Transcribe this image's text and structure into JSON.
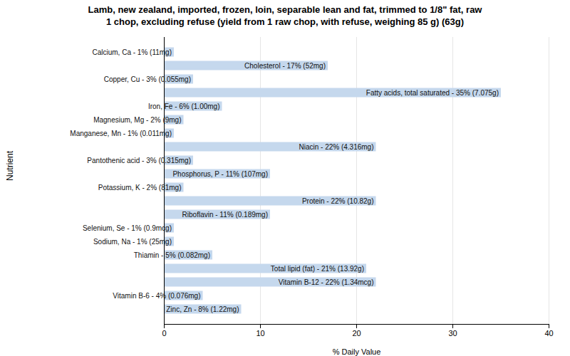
{
  "chart_data": {
    "type": "bar",
    "orientation": "horizontal",
    "title": "Lamb, new zealand, imported, frozen, loin, separable lean and fat, trimmed to 1/8\" fat, raw\n1 chop, excluding refuse (yield from 1 raw chop, with refuse, weighing 85 g) (63g)",
    "xlabel": "% Daily Value",
    "ylabel": "Nutrient",
    "categories": [
      "Calcium, Ca - 1% (11mg)",
      "Cholesterol - 17% (52mg)",
      "Copper, Cu - 3% (0.055mg)",
      "Fatty acids, total saturated - 35% (7.075g)",
      "Iron, Fe - 6% (1.00mg)",
      "Magnesium, Mg - 2% (9mg)",
      "Manganese, Mn - 1% (0.011mg)",
      "Niacin - 22% (4.316mg)",
      "Pantothenic acid - 3% (0.315mg)",
      "Phosphorus, P - 11% (107mg)",
      "Potassium, K - 2% (81mg)",
      "Protein - 22% (10.82g)",
      "Riboflavin - 11% (0.189mg)",
      "Selenium, Se - 1% (0.9mcg)",
      "Sodium, Na - 1% (25mg)",
      "Thiamin - 5% (0.082mg)",
      "Total lipid (fat) - 21% (13.92g)",
      "Vitamin B-12 - 22% (1.34mcg)",
      "Vitamin B-6 - 4% (0.076mg)",
      "Zinc, Zn - 8% (1.22mg)"
    ],
    "values": [
      1,
      17,
      3,
      35,
      6,
      2,
      1,
      22,
      3,
      11,
      2,
      22,
      11,
      1,
      1,
      5,
      21,
      22,
      4,
      8
    ],
    "color": "#c5d8ed",
    "xlim": [
      0,
      40
    ],
    "xticks": [
      0,
      10,
      20,
      30,
      40
    ],
    "grid": true,
    "tick_labels": "x"
  }
}
